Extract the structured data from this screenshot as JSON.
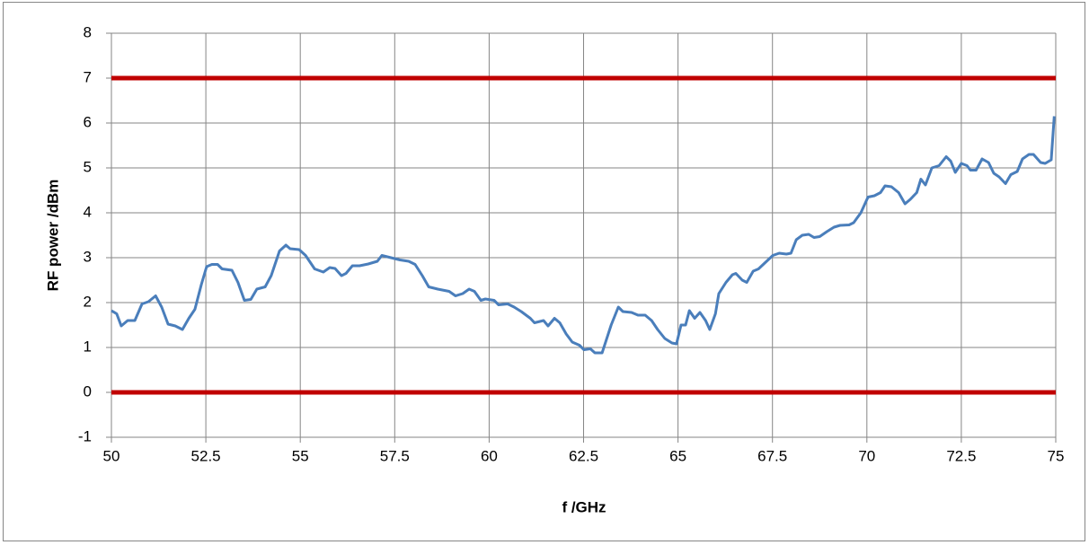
{
  "chart_data": {
    "type": "line",
    "xlabel": "f /GHz",
    "ylabel": "RF power /dBm",
    "xlim": [
      50,
      75
    ],
    "xticks": [
      50,
      52.5,
      55,
      57.5,
      60,
      62.5,
      65,
      67.5,
      70,
      72.5,
      75
    ],
    "ylim": [
      -1,
      8
    ],
    "yticks": [
      -1,
      0,
      1,
      2,
      3,
      4,
      5,
      6,
      7,
      8
    ],
    "grid": true,
    "series": [
      {
        "color": "#c00000",
        "x": [
          50,
          75
        ],
        "values": [
          7,
          7
        ]
      },
      {
        "color": "#c00000",
        "x": [
          50,
          75
        ],
        "values": [
          0,
          0
        ]
      },
      {
        "color": "#4a7ebb",
        "x": [
          50.0,
          50.14,
          50.26,
          50.43,
          50.62,
          50.81,
          50.98,
          51.17,
          51.33,
          51.5,
          51.69,
          51.88,
          52.05,
          52.21,
          52.38,
          52.52,
          52.66,
          52.81,
          52.93,
          53.19,
          53.35,
          53.52,
          53.69,
          53.85,
          54.07,
          54.23,
          54.45,
          54.62,
          54.73,
          54.97,
          55.14,
          55.38,
          55.61,
          55.78,
          55.92,
          56.09,
          56.21,
          56.38,
          56.57,
          56.8,
          57.04,
          57.16,
          57.4,
          57.64,
          57.87,
          58.04,
          58.23,
          58.4,
          58.64,
          58.94,
          59.11,
          59.3,
          59.47,
          59.61,
          59.78,
          59.9,
          60.13,
          60.25,
          60.49,
          60.66,
          60.85,
          61.09,
          61.2,
          61.44,
          61.56,
          61.73,
          61.87,
          62.04,
          62.2,
          62.39,
          62.51,
          62.68,
          62.8,
          62.99,
          63.23,
          63.42,
          63.54,
          63.77,
          63.94,
          64.13,
          64.3,
          64.46,
          64.65,
          64.84,
          64.96,
          65.08,
          65.2,
          65.3,
          65.44,
          65.58,
          65.73,
          65.84,
          65.99,
          66.08,
          66.27,
          66.44,
          66.53,
          66.7,
          66.82,
          66.99,
          67.13,
          67.32,
          67.51,
          67.68,
          67.87,
          67.99,
          68.13,
          68.29,
          68.46,
          68.6,
          68.75,
          68.94,
          69.13,
          69.29,
          69.53,
          69.65,
          69.84,
          70.03,
          70.2,
          70.36,
          70.48,
          70.65,
          70.84,
          71.01,
          71.15,
          71.32,
          71.43,
          71.55,
          71.72,
          71.91,
          72.1,
          72.22,
          72.34,
          72.5,
          72.65,
          72.74,
          72.89,
          73.05,
          73.22,
          73.36,
          73.5,
          73.67,
          73.81,
          73.98,
          74.12,
          74.29,
          74.41,
          74.6,
          74.72,
          74.88,
          74.96
        ],
        "values": [
          1.82,
          1.75,
          1.48,
          1.6,
          1.6,
          1.97,
          2.02,
          2.15,
          1.9,
          1.52,
          1.48,
          1.4,
          1.65,
          1.85,
          2.4,
          2.8,
          2.85,
          2.85,
          2.75,
          2.72,
          2.45,
          2.05,
          2.07,
          2.3,
          2.35,
          2.6,
          3.15,
          3.28,
          3.2,
          3.18,
          3.05,
          2.75,
          2.68,
          2.78,
          2.76,
          2.6,
          2.65,
          2.82,
          2.82,
          2.86,
          2.92,
          3.05,
          3.0,
          2.95,
          2.92,
          2.85,
          2.6,
          2.35,
          2.3,
          2.25,
          2.15,
          2.2,
          2.3,
          2.25,
          2.05,
          2.08,
          2.05,
          1.95,
          1.97,
          1.9,
          1.8,
          1.65,
          1.55,
          1.6,
          1.48,
          1.65,
          1.55,
          1.3,
          1.12,
          1.05,
          0.95,
          0.97,
          0.88,
          0.88,
          1.5,
          1.9,
          1.8,
          1.78,
          1.72,
          1.72,
          1.6,
          1.4,
          1.2,
          1.1,
          1.08,
          1.5,
          1.5,
          1.82,
          1.65,
          1.78,
          1.6,
          1.4,
          1.75,
          2.2,
          2.45,
          2.62,
          2.65,
          2.5,
          2.45,
          2.7,
          2.75,
          2.9,
          3.05,
          3.1,
          3.08,
          3.1,
          3.4,
          3.5,
          3.52,
          3.45,
          3.47,
          3.58,
          3.68,
          3.72,
          3.73,
          3.78,
          4.0,
          4.35,
          4.38,
          4.45,
          4.6,
          4.58,
          4.45,
          4.2,
          4.3,
          4.45,
          4.75,
          4.62,
          5.0,
          5.05,
          5.25,
          5.15,
          4.9,
          5.1,
          5.05,
          4.95,
          4.95,
          5.2,
          5.12,
          4.88,
          4.8,
          4.65,
          4.85,
          4.92,
          5.2,
          5.3,
          5.3,
          5.12,
          5.1,
          5.18,
          6.15
        ]
      }
    ]
  }
}
